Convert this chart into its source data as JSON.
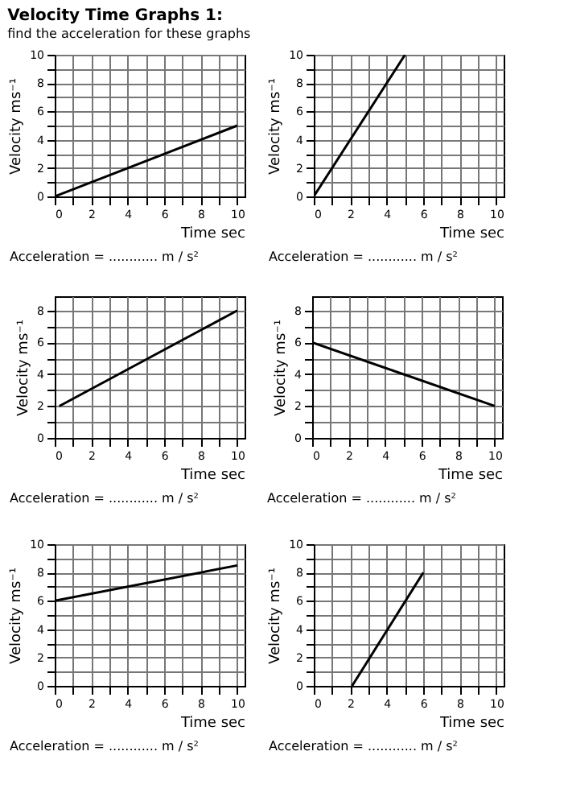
{
  "chart_data": [
    {
      "type": "line",
      "title": "Velocity Time Graphs 1:",
      "subtitle": "find the acceleration for these graphs",
      "xlabel": "Time  sec",
      "ylabel": "Velocity ms⁻¹",
      "annotations": [
        "Acceleration   =   ............ m / s²"
      ],
      "x": [
        0,
        10
      ],
      "values": [
        0,
        5
      ],
      "color": "#000000",
      "xlim": [
        0,
        10.4
      ],
      "ylim": [
        0,
        10
      ],
      "xticks": [
        0,
        {
          "value": 1,
          "label": null
        },
        2,
        {
          "value": 3,
          "label": null
        },
        4,
        {
          "value": 5,
          "label": null
        },
        6,
        {
          "value": 7,
          "label": null
        },
        8,
        {
          "value": 9,
          "label": null
        },
        10
      ],
      "yticks": [
        0,
        {
          "value": 1,
          "label": null
        },
        2,
        {
          "value": 3,
          "label": null
        },
        4,
        {
          "value": 5,
          "label": null
        },
        6,
        {
          "value": 7,
          "label": null
        },
        8,
        {
          "value": 9,
          "label": null
        },
        10
      ],
      "grid": true,
      "marker": "none"
    },
    {
      "type": "line",
      "xlabel": "Time  sec",
      "ylabel": "Velocity ms⁻¹",
      "annotations": [
        "Acceleration   =   ............ m / s²"
      ],
      "x": [
        0,
        5
      ],
      "values": [
        0,
        10
      ],
      "color": "#000000",
      "xlim": [
        0,
        10.4
      ],
      "ylim": [
        0,
        10
      ],
      "xticks": [
        0,
        {
          "value": 1,
          "label": null
        },
        2,
        {
          "value": 3,
          "label": null
        },
        4,
        {
          "value": 5,
          "label": null
        },
        6,
        {
          "value": 7,
          "label": null
        },
        8,
        {
          "value": 9,
          "label": null
        },
        10
      ],
      "yticks": [
        0,
        {
          "value": 1,
          "label": null
        },
        2,
        {
          "value": 3,
          "label": null
        },
        4,
        {
          "value": 5,
          "label": null
        },
        6,
        {
          "value": 7,
          "label": null
        },
        8,
        {
          "value": 9,
          "label": null
        },
        10
      ],
      "grid": true,
      "marker": "none"
    },
    {
      "type": "line",
      "xlabel": "Time  sec",
      "ylabel": "Velocity ms⁻¹",
      "annotations": [
        "Acceleration   =   ............ m / s²"
      ],
      "x": [
        0.25,
        10
      ],
      "values": [
        2,
        8
      ],
      "color": "#000000",
      "xlim": [
        0,
        10.4
      ],
      "ylim": [
        0,
        8.9
      ],
      "xticks": [
        0,
        {
          "value": 1,
          "label": null
        },
        2,
        {
          "value": 3,
          "label": null
        },
        4,
        {
          "value": 5,
          "label": null
        },
        6,
        {
          "value": 7,
          "label": null
        },
        8,
        {
          "value": 9,
          "label": null
        },
        10
      ],
      "yticks": [
        0,
        {
          "value": 1,
          "label": null
        },
        2,
        {
          "value": 3,
          "label": null
        },
        4,
        {
          "value": 5,
          "label": null
        },
        6,
        {
          "value": 7,
          "label": null
        },
        8
      ],
      "grid": true,
      "marker": "none"
    },
    {
      "type": "line",
      "xlabel": "Time  sec",
      "ylabel": "Velocity ms⁻¹",
      "annotations": [
        "Acceleration   =   ............ m / s²"
      ],
      "x": [
        0,
        10
      ],
      "values": [
        6,
        2
      ],
      "color": "#000000",
      "xlim": [
        0,
        10.4
      ],
      "ylim": [
        0,
        8.9
      ],
      "xticks": [
        0,
        {
          "value": 1,
          "label": null
        },
        2,
        {
          "value": 3,
          "label": null
        },
        4,
        {
          "value": 5,
          "label": null
        },
        6,
        {
          "value": 7,
          "label": null
        },
        8,
        {
          "value": 9,
          "label": null
        },
        10
      ],
      "yticks": [
        0,
        {
          "value": 1,
          "label": null
        },
        2,
        {
          "value": 3,
          "label": null
        },
        4,
        {
          "value": 5,
          "label": null
        },
        6,
        {
          "value": 7,
          "label": null
        },
        8
      ],
      "grid": true,
      "marker": "none"
    },
    {
      "type": "line",
      "xlabel": "Time  sec",
      "ylabel": "Velocity ms⁻¹",
      "annotations": [
        "Acceleration   =   ............ m / s²"
      ],
      "x": [
        0,
        10
      ],
      "values": [
        6,
        8.5
      ],
      "color": "#000000",
      "xlim": [
        0,
        10.4
      ],
      "ylim": [
        0,
        10
      ],
      "xticks": [
        0,
        {
          "value": 1,
          "label": null
        },
        2,
        {
          "value": 3,
          "label": null
        },
        4,
        {
          "value": 5,
          "label": null
        },
        6,
        {
          "value": 7,
          "label": null
        },
        8,
        {
          "value": 9,
          "label": null
        },
        10
      ],
      "yticks": [
        0,
        {
          "value": 1,
          "label": null
        },
        2,
        {
          "value": 3,
          "label": null
        },
        4,
        {
          "value": 5,
          "label": null
        },
        6,
        {
          "value": 7,
          "label": null
        },
        8,
        {
          "value": 9,
          "label": null
        },
        10
      ],
      "grid": true,
      "marker": "none"
    },
    {
      "type": "line",
      "xlabel": "Time  sec",
      "ylabel": "Velocity ms⁻¹",
      "annotations": [
        "Acceleration   =   ............ m / s²"
      ],
      "x": [
        2.1,
        6
      ],
      "values": [
        0,
        8
      ],
      "color": "#000000",
      "xlim": [
        0,
        10.4
      ],
      "ylim": [
        0,
        10
      ],
      "xticks": [
        0,
        {
          "value": 1,
          "label": null
        },
        2,
        {
          "value": 3,
          "label": null
        },
        4,
        {
          "value": 5,
          "label": null
        },
        6,
        {
          "value": 7,
          "label": null
        },
        8,
        {
          "value": 9,
          "label": null
        },
        10
      ],
      "yticks": [
        0,
        {
          "value": 1,
          "label": null
        },
        2,
        {
          "value": 3,
          "label": null
        },
        4,
        {
          "value": 5,
          "label": null
        },
        6,
        {
          "value": 7,
          "label": null
        },
        8,
        {
          "value": 9,
          "label": null
        },
        10
      ],
      "grid": true,
      "marker": "none"
    }
  ]
}
